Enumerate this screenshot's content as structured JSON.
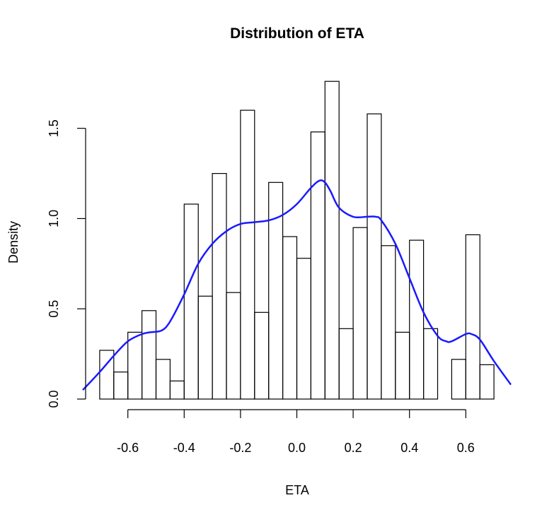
{
  "chart_data": {
    "type": "bar",
    "title": "Distribution of ETA",
    "xlabel": "ETA",
    "ylabel": "Density",
    "xlim": [
      -0.75,
      0.76
    ],
    "ylim": [
      0,
      1.8
    ],
    "x_ticks": [
      -0.6,
      -0.4,
      -0.2,
      0.0,
      0.2,
      0.4,
      0.6
    ],
    "x_tick_labels": [
      "-0.6",
      "-0.4",
      "-0.2",
      "0.0",
      "0.2",
      "0.4",
      "0.6"
    ],
    "y_ticks": [
      0.0,
      0.5,
      1.0,
      1.5
    ],
    "y_tick_labels": [
      "0.0",
      "0.5",
      "1.0",
      "1.5"
    ],
    "grid": false,
    "bin_width": 0.05,
    "histogram": [
      {
        "x0": -0.7,
        "x1": -0.65,
        "density": 0.27
      },
      {
        "x0": -0.65,
        "x1": -0.6,
        "density": 0.15
      },
      {
        "x0": -0.6,
        "x1": -0.55,
        "density": 0.37
      },
      {
        "x0": -0.55,
        "x1": -0.5,
        "density": 0.49
      },
      {
        "x0": -0.5,
        "x1": -0.45,
        "density": 0.22
      },
      {
        "x0": -0.45,
        "x1": -0.4,
        "density": 0.1
      },
      {
        "x0": -0.4,
        "x1": -0.35,
        "density": 1.08
      },
      {
        "x0": -0.35,
        "x1": -0.3,
        "density": 0.57
      },
      {
        "x0": -0.3,
        "x1": -0.25,
        "density": 1.25
      },
      {
        "x0": -0.25,
        "x1": -0.2,
        "density": 0.59
      },
      {
        "x0": -0.2,
        "x1": -0.15,
        "density": 1.6
      },
      {
        "x0": -0.15,
        "x1": -0.1,
        "density": 0.48
      },
      {
        "x0": -0.1,
        "x1": -0.05,
        "density": 1.2
      },
      {
        "x0": -0.05,
        "x1": 0.0,
        "density": 0.9
      },
      {
        "x0": 0.0,
        "x1": 0.05,
        "density": 0.78
      },
      {
        "x0": 0.05,
        "x1": 0.1,
        "density": 1.48
      },
      {
        "x0": 0.1,
        "x1": 0.15,
        "density": 1.76
      },
      {
        "x0": 0.15,
        "x1": 0.2,
        "density": 0.39
      },
      {
        "x0": 0.2,
        "x1": 0.25,
        "density": 0.95
      },
      {
        "x0": 0.25,
        "x1": 0.3,
        "density": 1.58
      },
      {
        "x0": 0.3,
        "x1": 0.35,
        "density": 0.85
      },
      {
        "x0": 0.35,
        "x1": 0.4,
        "density": 0.37
      },
      {
        "x0": 0.4,
        "x1": 0.45,
        "density": 0.88
      },
      {
        "x0": 0.45,
        "x1": 0.5,
        "density": 0.39
      },
      {
        "x0": 0.5,
        "x1": 0.55,
        "density": 0.0
      },
      {
        "x0": 0.55,
        "x1": 0.6,
        "density": 0.22
      },
      {
        "x0": 0.6,
        "x1": 0.65,
        "density": 0.91
      },
      {
        "x0": 0.65,
        "x1": 0.7,
        "density": 0.19
      }
    ],
    "density_curve": {
      "color": "#1a1aff",
      "x": [
        -0.76,
        -0.7,
        -0.65,
        -0.6,
        -0.55,
        -0.52,
        -0.48,
        -0.45,
        -0.4,
        -0.35,
        -0.3,
        -0.25,
        -0.2,
        -0.15,
        -0.1,
        -0.05,
        0.0,
        0.05,
        0.08,
        0.1,
        0.12,
        0.15,
        0.2,
        0.25,
        0.28,
        0.3,
        0.35,
        0.4,
        0.45,
        0.5,
        0.53,
        0.55,
        0.6,
        0.62,
        0.65,
        0.7,
        0.76
      ],
      "y": [
        0.05,
        0.15,
        0.24,
        0.32,
        0.36,
        0.37,
        0.38,
        0.43,
        0.58,
        0.75,
        0.86,
        0.93,
        0.97,
        0.98,
        0.99,
        1.02,
        1.08,
        1.17,
        1.21,
        1.2,
        1.15,
        1.06,
        1.01,
        1.01,
        1.01,
        0.99,
        0.86,
        0.67,
        0.48,
        0.35,
        0.32,
        0.32,
        0.36,
        0.36,
        0.33,
        0.21,
        0.08
      ]
    }
  }
}
